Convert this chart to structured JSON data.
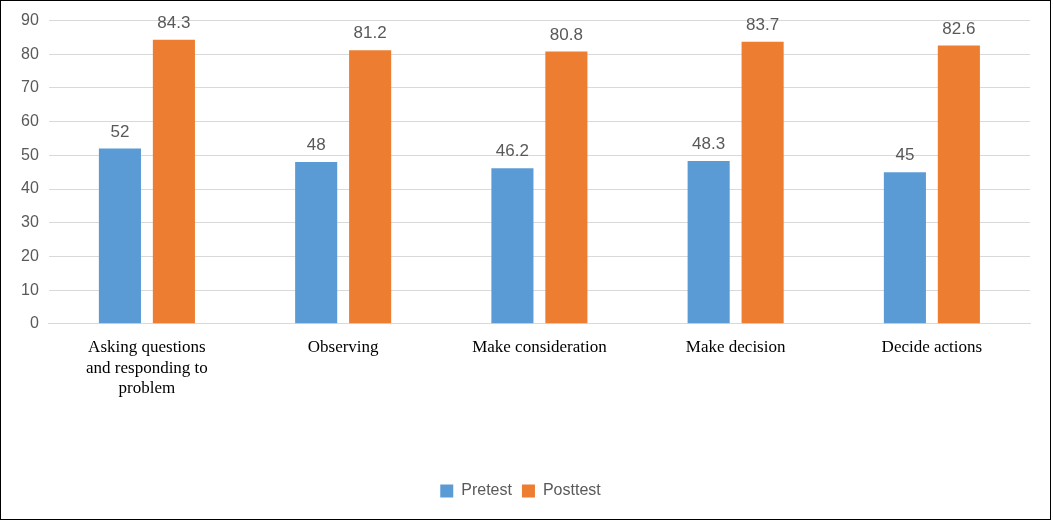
{
  "chart_data": {
    "type": "bar",
    "categories": [
      "Asking questions and responding to problem",
      "Observing",
      "Make consideration",
      "Make decision",
      "Decide actions"
    ],
    "series": [
      {
        "name": "Pretest",
        "color": "#5b9bd5",
        "values": [
          52,
          48,
          46.2,
          48.3,
          45
        ]
      },
      {
        "name": "Posttest",
        "color": "#ed7d31",
        "values": [
          84.3,
          81.2,
          80.8,
          83.7,
          82.6
        ]
      }
    ],
    "ylim": [
      0,
      90
    ],
    "yticks": [
      0,
      10,
      20,
      30,
      40,
      50,
      60,
      70,
      80,
      90
    ],
    "grid": "y",
    "legend": "bottom",
    "data_labels": true
  }
}
